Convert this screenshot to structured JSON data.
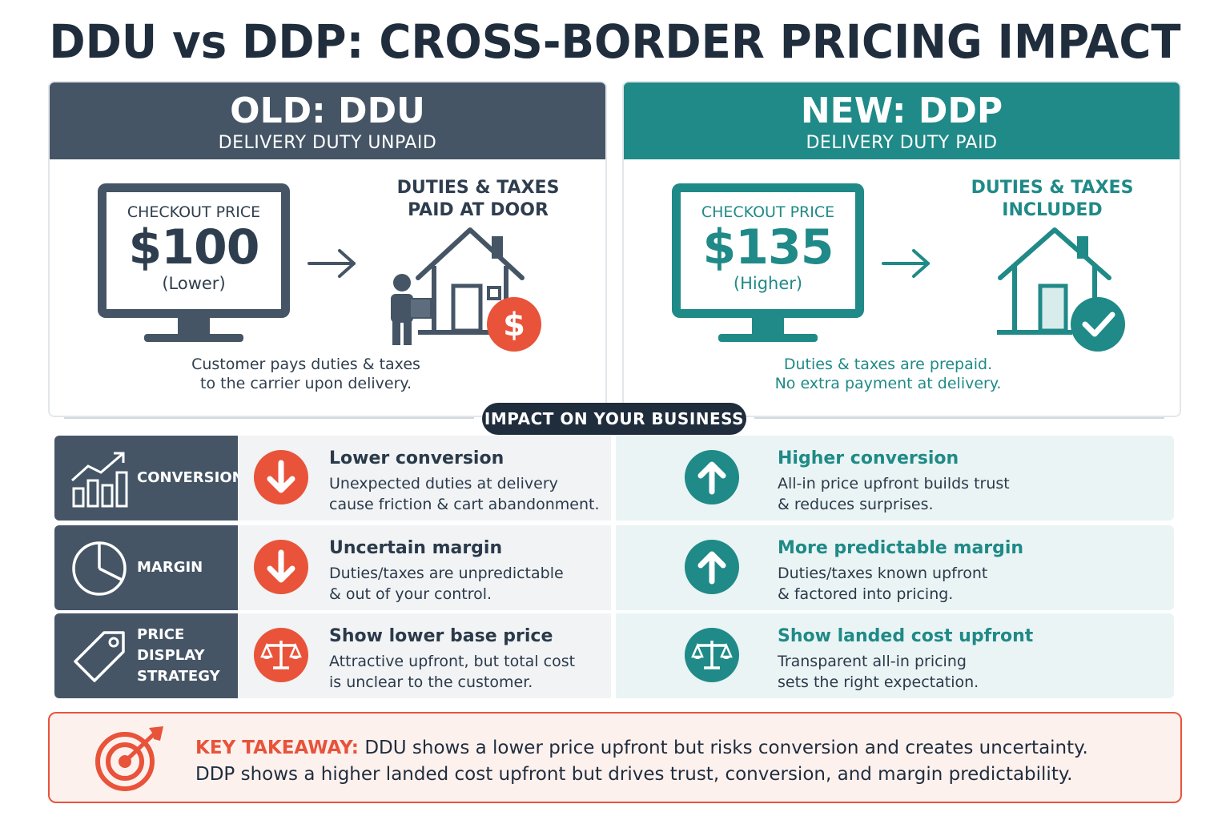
{
  "title": "DDU vs DDP: CROSS-BORDER PRICING IMPACT",
  "old": {
    "heading": "OLD: DDU",
    "subheading": "DELIVERY DUTY UNPAID",
    "checkout_label": "CHECKOUT PRICE",
    "price": "$100",
    "price_note": "(Lower)",
    "duty_line1": "DUTIES & TAXES",
    "duty_line2": "PAID AT DOOR",
    "caption_line1": "Customer pays duties & taxes",
    "caption_line2": "to the carrier upon delivery."
  },
  "new": {
    "heading": "NEW: DDP",
    "subheading": "DELIVERY DUTY PAID",
    "checkout_label": "CHECKOUT PRICE",
    "price": "$135",
    "price_note": "(Higher)",
    "duty_line1": "DUTIES & TAXES",
    "duty_line2": "INCLUDED",
    "caption_line1": "Duties & taxes are prepaid.",
    "caption_line2": "No extra payment at delivery."
  },
  "impact_label": "IMPACT ON YOUR BUSINESS",
  "rows": [
    {
      "category": "CONVERSION",
      "category_line2": "",
      "icon": "growth-chart-icon",
      "old_title": "Lower conversion",
      "old_desc1": "Unexpected duties at delivery",
      "old_desc2": "cause friction & cart abandonment.",
      "new_title": "Higher conversion",
      "new_desc1": "All-in price upfront builds trust",
      "new_desc2": "& reduces surprises."
    },
    {
      "category": "MARGIN",
      "category_line2": "",
      "icon": "pie-chart-icon",
      "old_title": "Uncertain margin",
      "old_desc1": "Duties/taxes are unpredictable",
      "old_desc2": "& out of your control.",
      "new_title": "More predictable margin",
      "new_desc1": "Duties/taxes known upfront",
      "new_desc2": "& factored into pricing."
    },
    {
      "category": "PRICE DISPLAY",
      "category_line2": "STRATEGY",
      "icon": "price-tag-icon",
      "old_title": "Show lower base price",
      "old_desc1": "Attractive upfront, but total cost",
      "old_desc2": "is unclear to the customer.",
      "new_title": "Show landed cost upfront",
      "new_desc1": "Transparent all-in pricing",
      "new_desc2": "sets the right expectation."
    }
  ],
  "takeaway": {
    "key": "KEY TAKEAWAY:",
    "line1": "DDU shows a lower price upfront but risks conversion and creates uncertainty.",
    "line2": "DDP shows a higher landed cost upfront but drives trust, conversion, and margin predictability."
  },
  "colors": {
    "slate": "#455566",
    "teal": "#1f8a87",
    "red": "#e8533a",
    "navy": "#1f2d3d"
  }
}
